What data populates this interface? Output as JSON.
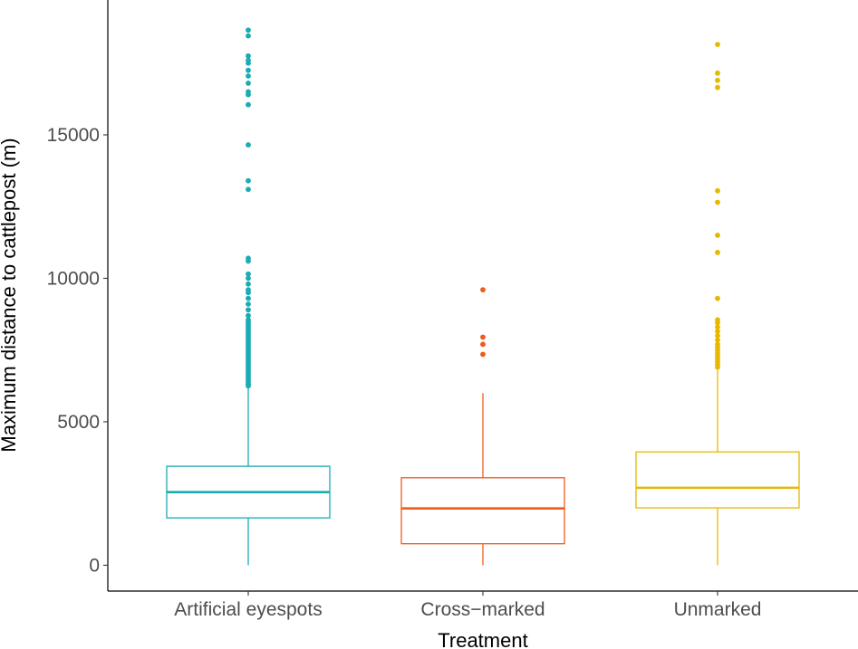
{
  "chart_data": {
    "type": "boxplot",
    "title": "",
    "xlabel": "Treatment",
    "ylabel": "Maximum distance to cattlepost (m)",
    "ylim": [
      -900,
      19700
    ],
    "yticks": [
      0,
      5000,
      10000,
      15000
    ],
    "ytick_labels": [
      "0",
      "5000",
      "10000",
      "15000"
    ],
    "categories": [
      "Artificial eyespots",
      "Cross−marked",
      "Unmarked"
    ],
    "colors": [
      "#1aabb4",
      "#f05a1a",
      "#e6b800"
    ],
    "boxes": [
      {
        "name": "Artificial eyespots",
        "whisker_low": 0,
        "q1": 1650,
        "median": 2550,
        "q3": 3450,
        "whisker_high": 6200,
        "outliers": [
          6250,
          6300,
          6380,
          6450,
          6520,
          6600,
          6680,
          6750,
          6820,
          6900,
          6980,
          7050,
          7120,
          7200,
          7280,
          7350,
          7420,
          7500,
          7580,
          7650,
          7720,
          7800,
          7880,
          7950,
          8020,
          8100,
          8180,
          8250,
          8320,
          8400,
          8480,
          8550,
          8700,
          8900,
          9100,
          9300,
          9500,
          9600,
          9800,
          10000,
          10150,
          10600,
          10700,
          13100,
          13400,
          14650,
          16050,
          16400,
          16500,
          16800,
          17050,
          17250,
          17500,
          17600,
          17750,
          18450,
          18650
        ]
      },
      {
        "name": "Cross−marked",
        "whisker_low": 0,
        "q1": 750,
        "median": 1980,
        "q3": 3050,
        "whisker_high": 6000,
        "outliers": [
          7350,
          7700,
          7950,
          9600
        ]
      },
      {
        "name": "Unmarked",
        "whisker_low": 0,
        "q1": 2000,
        "median": 2700,
        "q3": 3950,
        "whisker_high": 6800,
        "outliers": [
          6900,
          7000,
          7100,
          7200,
          7300,
          7400,
          7500,
          7600,
          7700,
          7850,
          8000,
          8150,
          8300,
          8450,
          8550,
          9300,
          10900,
          11500,
          12650,
          13050,
          16650,
          16900,
          17150,
          18150
        ]
      }
    ]
  }
}
